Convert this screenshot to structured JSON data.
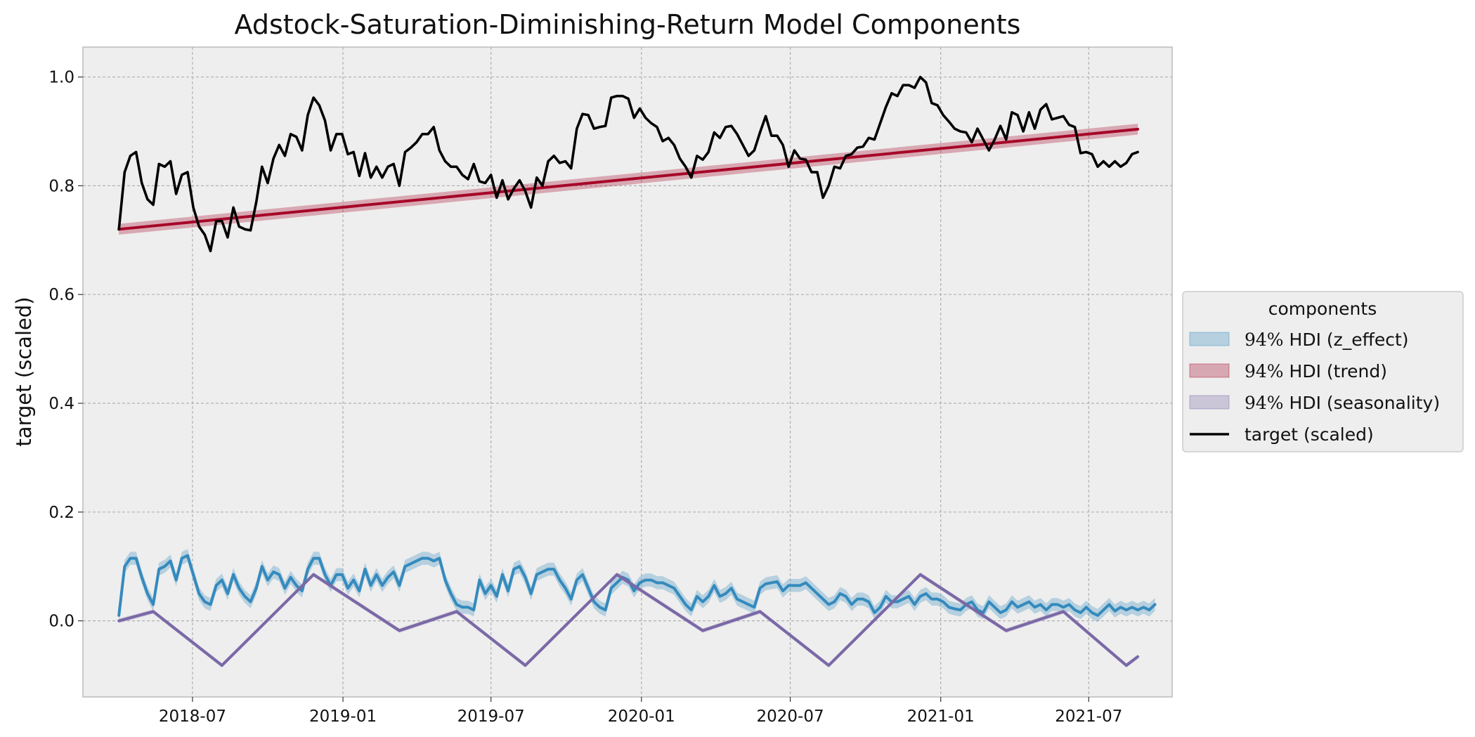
{
  "chart_data": {
    "type": "line",
    "title": "Adstock-Saturation-Diminishing-Return Model Components",
    "xlabel": "",
    "ylabel": "target (scaled)",
    "x_range": [
      "2018-04-02",
      "2021-08-30"
    ],
    "x_axis_range": [
      "2018-02-17",
      "2021-10-11"
    ],
    "ylim": [
      -0.14,
      1.055
    ],
    "x_ticks": [
      "2018-07",
      "2019-01",
      "2019-07",
      "2020-01",
      "2020-07",
      "2021-01",
      "2021-07"
    ],
    "x_tick_dates": [
      "2018-07-01",
      "2019-01-01",
      "2019-07-01",
      "2020-01-01",
      "2020-07-01",
      "2021-01-01",
      "2021-07-01"
    ],
    "y_ticks": [
      "0.0",
      "0.2",
      "0.4",
      "0.6",
      "0.8",
      "1.0"
    ],
    "y_tick_values": [
      0.0,
      0.2,
      0.4,
      0.6,
      0.8,
      1.0
    ],
    "grid": true,
    "legend": {
      "title": "components",
      "placement": "center-right-outside",
      "entries": [
        {
          "label_math": "94%",
          "label": " HDI (z_effect)",
          "color": "#348ABD",
          "kind": "band"
        },
        {
          "label_math": "94%",
          "label": " HDI (trend)",
          "color": "#A60628",
          "kind": "band"
        },
        {
          "label_math": "94%",
          "label": " HDI (seasonality)",
          "color": "#7A68A6",
          "kind": "band"
        },
        {
          "label_math": "",
          "label": "target (scaled)",
          "color": "#000000",
          "kind": "line"
        }
      ]
    },
    "series": [
      {
        "name": "target (scaled)",
        "kind": "line",
        "color": "#000000",
        "x_start": "2018-04-02",
        "x_step_days": 7,
        "values": [
          0.72,
          0.825,
          0.855,
          0.862,
          0.805,
          0.775,
          0.765,
          0.84,
          0.835,
          0.845,
          0.785,
          0.82,
          0.825,
          0.76,
          0.725,
          0.71,
          0.68,
          0.735,
          0.735,
          0.705,
          0.76,
          0.725,
          0.72,
          0.718,
          0.77,
          0.835,
          0.805,
          0.85,
          0.875,
          0.855,
          0.895,
          0.89,
          0.865,
          0.93,
          0.962,
          0.948,
          0.92,
          0.865,
          0.895,
          0.895,
          0.858,
          0.862,
          0.818,
          0.86,
          0.815,
          0.835,
          0.815,
          0.835,
          0.84,
          0.8,
          0.862,
          0.87,
          0.88,
          0.895,
          0.895,
          0.908,
          0.865,
          0.845,
          0.835,
          0.835,
          0.82,
          0.812,
          0.84,
          0.808,
          0.805,
          0.82,
          0.778,
          0.81,
          0.775,
          0.795,
          0.81,
          0.79,
          0.76,
          0.815,
          0.8,
          0.845,
          0.855,
          0.842,
          0.845,
          0.832,
          0.905,
          0.932,
          0.93,
          0.905,
          0.908,
          0.91,
          0.962,
          0.965,
          0.965,
          0.96,
          0.925,
          0.942,
          0.925,
          0.915,
          0.908,
          0.882,
          0.888,
          0.875,
          0.85,
          0.835,
          0.815,
          0.855,
          0.848,
          0.862,
          0.898,
          0.888,
          0.908,
          0.91,
          0.895,
          0.875,
          0.855,
          0.865,
          0.898,
          0.928,
          0.892,
          0.892,
          0.875,
          0.835,
          0.865,
          0.85,
          0.848,
          0.825,
          0.825,
          0.778,
          0.8,
          0.835,
          0.832,
          0.855,
          0.858,
          0.87,
          0.872,
          0.888,
          0.885,
          0.915,
          0.945,
          0.97,
          0.965,
          0.985,
          0.985,
          0.98,
          1.0,
          0.99,
          0.952,
          0.948,
          0.93,
          0.918,
          0.905,
          0.9,
          0.898,
          0.88,
          0.905,
          0.885,
          0.865,
          0.885,
          0.91,
          0.885,
          0.935,
          0.93,
          0.9,
          0.935,
          0.905,
          0.94,
          0.95,
          0.922,
          0.925,
          0.928,
          0.912,
          0.908,
          0.86,
          0.862,
          0.858,
          0.835,
          0.845,
          0.835,
          0.845,
          0.835,
          0.842,
          0.858,
          0.862
        ]
      },
      {
        "name": "94% HDI (z_effect)",
        "kind": "band_line",
        "color": "#348ABD",
        "band_halfwidth": 0.012,
        "x_start": "2018-04-02",
        "x_step_days": 7,
        "values": [
          0.01,
          0.1,
          0.115,
          0.115,
          0.08,
          0.05,
          0.03,
          0.095,
          0.1,
          0.11,
          0.075,
          0.115,
          0.12,
          0.085,
          0.05,
          0.035,
          0.03,
          0.065,
          0.075,
          0.05,
          0.085,
          0.06,
          0.045,
          0.035,
          0.06,
          0.1,
          0.075,
          0.09,
          0.085,
          0.06,
          0.08,
          0.065,
          0.055,
          0.095,
          0.115,
          0.115,
          0.085,
          0.065,
          0.085,
          0.085,
          0.06,
          0.075,
          0.055,
          0.095,
          0.065,
          0.085,
          0.065,
          0.08,
          0.09,
          0.065,
          0.1,
          0.105,
          0.11,
          0.115,
          0.115,
          0.11,
          0.115,
          0.075,
          0.05,
          0.03,
          0.025,
          0.025,
          0.02,
          0.075,
          0.05,
          0.065,
          0.045,
          0.085,
          0.055,
          0.095,
          0.1,
          0.08,
          0.05,
          0.085,
          0.09,
          0.095,
          0.095,
          0.075,
          0.06,
          0.04,
          0.075,
          0.085,
          0.06,
          0.035,
          0.025,
          0.02,
          0.06,
          0.07,
          0.08,
          0.075,
          0.055,
          0.07,
          0.075,
          0.075,
          0.07,
          0.07,
          0.065,
          0.06,
          0.045,
          0.03,
          0.02,
          0.045,
          0.035,
          0.045,
          0.065,
          0.045,
          0.05,
          0.06,
          0.04,
          0.035,
          0.03,
          0.025,
          0.06,
          0.068,
          0.07,
          0.072,
          0.055,
          0.065,
          0.065,
          0.065,
          0.07,
          0.06,
          0.05,
          0.04,
          0.03,
          0.035,
          0.05,
          0.045,
          0.03,
          0.04,
          0.04,
          0.035,
          0.015,
          0.025,
          0.045,
          0.035,
          0.035,
          0.04,
          0.045,
          0.03,
          0.045,
          0.05,
          0.04,
          0.04,
          0.035,
          0.025,
          0.022,
          0.02,
          0.03,
          0.035,
          0.02,
          0.015,
          0.035,
          0.025,
          0.015,
          0.02,
          0.035,
          0.025,
          0.03,
          0.035,
          0.025,
          0.03,
          0.02,
          0.03,
          0.03,
          0.025,
          0.03,
          0.02,
          0.015,
          0.025,
          0.015,
          0.01,
          0.02,
          0.03,
          0.018,
          0.025,
          0.02,
          0.025,
          0.02,
          0.025,
          0.02,
          0.03
        ]
      },
      {
        "name": "94% HDI (trend)",
        "kind": "band_line",
        "color": "#A60628",
        "band_halfwidth": 0.01,
        "x": [
          "2018-04-02",
          "2021-08-30"
        ],
        "values": [
          0.72,
          0.904
        ]
      },
      {
        "name": "94% HDI (seasonality)",
        "kind": "band_line",
        "color": "#7A68A6",
        "band_halfwidth": 0.004,
        "x": [
          "2018-04-02",
          "2018-05-14",
          "2018-08-06",
          "2018-11-26",
          "2019-03-11",
          "2019-05-20",
          "2019-08-12",
          "2019-12-02",
          "2020-03-16",
          "2020-05-25",
          "2020-08-17",
          "2020-12-07",
          "2021-03-22",
          "2021-05-31",
          "2021-08-16",
          "2021-08-30"
        ],
        "values": [
          0.0,
          0.017,
          -0.082,
          0.085,
          -0.018,
          0.017,
          -0.082,
          0.085,
          -0.018,
          0.017,
          -0.082,
          0.085,
          -0.018,
          0.017,
          -0.082,
          -0.066
        ]
      }
    ]
  }
}
